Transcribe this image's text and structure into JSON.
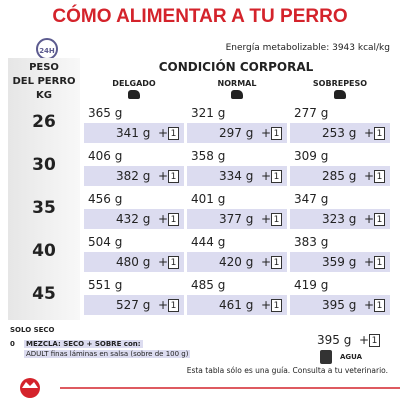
{
  "header": {
    "title": "CÓMO ALIMENTAR A TU PERRO",
    "clock": "24H",
    "energy": "Energía metabolizable: 3943 kcal/kg"
  },
  "table": {
    "weight_header": [
      "PESO",
      "DEL PERRO",
      "KG"
    ],
    "condition_header": "CONDICIÓN CORPORAL",
    "columns": [
      "DELGADO",
      "NORMAL",
      "SOBREPESO"
    ],
    "plus": "+",
    "pouch": "1",
    "rows": [
      {
        "weight": "26",
        "cells": [
          {
            "dry": "365 g",
            "mix": "341 g"
          },
          {
            "dry": "321 g",
            "mix": "297 g"
          },
          {
            "dry": "277 g",
            "mix": "253 g"
          }
        ]
      },
      {
        "weight": "30",
        "cells": [
          {
            "dry": "406 g",
            "mix": "382 g"
          },
          {
            "dry": "358 g",
            "mix": "334 g"
          },
          {
            "dry": "309 g",
            "mix": "285 g"
          }
        ]
      },
      {
        "weight": "35",
        "cells": [
          {
            "dry": "456 g",
            "mix": "432 g"
          },
          {
            "dry": "401 g",
            "mix": "377 g"
          },
          {
            "dry": "347 g",
            "mix": "323 g"
          }
        ]
      },
      {
        "weight": "40",
        "cells": [
          {
            "dry": "504 g",
            "mix": "480 g"
          },
          {
            "dry": "444 g",
            "mix": "420 g"
          },
          {
            "dry": "383 g",
            "mix": "359 g"
          }
        ]
      },
      {
        "weight": "45",
        "cells": [
          {
            "dry": "551 g",
            "mix": "527 g"
          },
          {
            "dry": "485 g",
            "mix": "461 g"
          },
          {
            "dry": "419 g",
            "mix": "395 g"
          }
        ]
      }
    ]
  },
  "legend": {
    "dry_only": "SOLO SECO",
    "zero": "0",
    "mix": "MEZCLA: SECO + SOBRE con:",
    "mix_detail": "ADULT finas láminas en salsa (sobre de 100 g)",
    "example_mix": "395 g",
    "water": "AGUA"
  },
  "footer": {
    "note": "Esta tabla sólo es una guía. Consulta a tu veterinario."
  }
}
